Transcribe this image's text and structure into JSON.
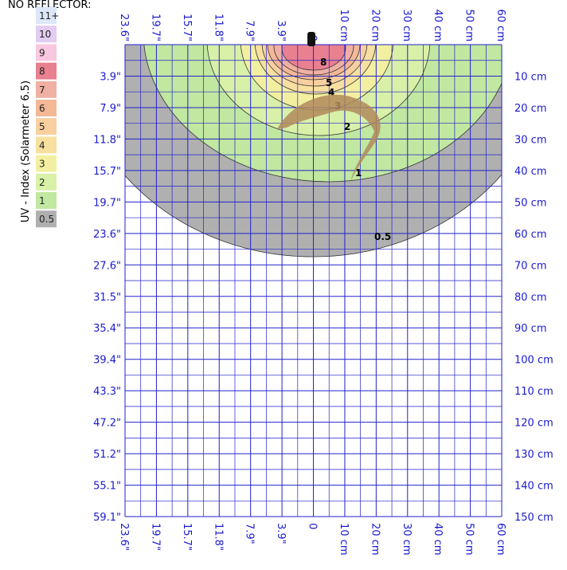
{
  "title": "NO REFLECTOR:",
  "legend": {
    "title": "UV - Index (Solarmeter 6.5)",
    "items": [
      {
        "label": "11+",
        "color": "#dce8f8"
      },
      {
        "label": "10",
        "color": "#e2ccf2"
      },
      {
        "label": "9",
        "color": "#f8c8e0"
      },
      {
        "label": "8",
        "color": "#e88090"
      },
      {
        "label": "7",
        "color": "#f0b0a4"
      },
      {
        "label": "6",
        "color": "#f4b896"
      },
      {
        "label": "5",
        "color": "#f8d0a0"
      },
      {
        "label": "4",
        "color": "#f8e0a0"
      },
      {
        "label": "3",
        "color": "#f2f0a0"
      },
      {
        "label": "2",
        "color": "#d8f0a8"
      },
      {
        "label": "1",
        "color": "#c0e8a0"
      },
      {
        "label": "0.5",
        "color": "#b0b0b0"
      }
    ]
  },
  "top_axis": [
    "23.6\"",
    "19.7\"",
    "15.7\"",
    "11.8\"",
    "7.9\"",
    "3.9\"",
    "0",
    "10 cm",
    "20 cm",
    "30 cm",
    "40 cm",
    "50 cm",
    "60 cm"
  ],
  "bottom_axis": [
    "23.6\"",
    "19.7\"",
    "15.7\"",
    "11.8\"",
    "7.9\"",
    "3.9\"",
    "0",
    "10 cm",
    "20 cm",
    "30 cm",
    "40 cm",
    "50 cm",
    "60 cm"
  ],
  "left_axis": [
    "3.9\"",
    "7.9\"",
    "11.8\"",
    "15.7\"",
    "19.7\"",
    "23.6\"",
    "27.6\"",
    "31.5\"",
    "35.4\"",
    "39.4\"",
    "43.3\"",
    "47.2\"",
    "51.2\"",
    "55.1\"",
    "59.1\""
  ],
  "right_axis": [
    "10 cm",
    "20 cm",
    "30 cm",
    "40 cm",
    "50 cm",
    "60 cm",
    "70 cm",
    "80 cm",
    "90 cm",
    "100 cm",
    "110 cm",
    "120 cm",
    "130 cm",
    "140 cm",
    "150 cm"
  ],
  "contour_labels": [
    "8",
    "5",
    "4",
    "3",
    "2",
    "1",
    "0.5"
  ]
}
